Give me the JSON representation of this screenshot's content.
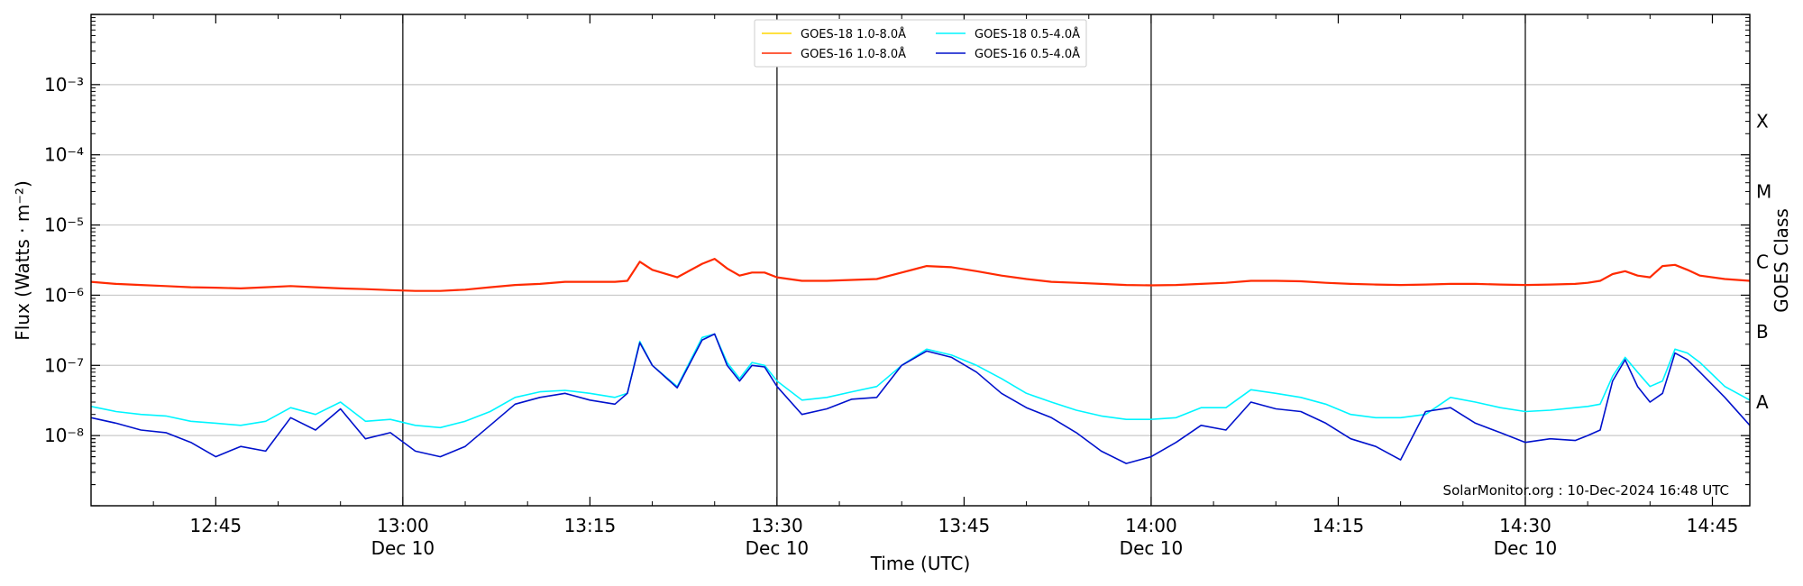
{
  "chart_data": {
    "type": "line",
    "ylabel": "Flux (Watts · m⁻²)",
    "xlabel": "Time (UTC)",
    "right_axis_label": "GOES Class",
    "credit": "SolarMonitor.org : 10-Dec-2024 16:48 UTC",
    "x_range": [
      "12:35",
      "14:48"
    ],
    "y_range": [
      1e-09,
      0.01
    ],
    "y_scale": "log",
    "grid": "horizontal at decades",
    "legend_position": "top-center",
    "x_ticks": [
      {
        "time": "12:45",
        "label": "12:45",
        "date": ""
      },
      {
        "time": "13:00",
        "label": "13:00",
        "date": "Dec 10"
      },
      {
        "time": "13:15",
        "label": "13:15",
        "date": ""
      },
      {
        "time": "13:30",
        "label": "13:30",
        "date": "Dec 10"
      },
      {
        "time": "13:45",
        "label": "13:45",
        "date": ""
      },
      {
        "time": "14:00",
        "label": "14:00",
        "date": "Dec 10"
      },
      {
        "time": "14:15",
        "label": "14:15",
        "date": ""
      },
      {
        "time": "14:30",
        "label": "14:30",
        "date": "Dec 10"
      },
      {
        "time": "14:45",
        "label": "14:45",
        "date": ""
      }
    ],
    "y_ticks": [
      {
        "exp": -8,
        "label": "10⁻⁸"
      },
      {
        "exp": -7,
        "label": "10⁻⁷"
      },
      {
        "exp": -6,
        "label": "10⁻⁶"
      },
      {
        "exp": -5,
        "label": "10⁻⁵"
      },
      {
        "exp": -4,
        "label": "10⁻⁴"
      },
      {
        "exp": -3,
        "label": "10⁻³"
      }
    ],
    "day_lines": [
      "13:00",
      "13:30",
      "14:00",
      "14:30"
    ],
    "goes_classes": [
      {
        "label": "A",
        "flux": 3e-08
      },
      {
        "label": "B",
        "flux": 3e-07
      },
      {
        "label": "C",
        "flux": 3e-06
      },
      {
        "label": "M",
        "flux": 3e-05
      },
      {
        "label": "X",
        "flux": 0.0003
      }
    ],
    "x": [
      "12:35",
      "12:37",
      "12:39",
      "12:41",
      "12:43",
      "12:45",
      "12:47",
      "12:49",
      "12:51",
      "12:53",
      "12:55",
      "12:57",
      "12:59",
      "13:01",
      "13:03",
      "13:05",
      "13:07",
      "13:09",
      "13:11",
      "13:13",
      "13:15",
      "13:17",
      "13:18",
      "13:19",
      "13:20",
      "13:22",
      "13:24",
      "13:25",
      "13:26",
      "13:27",
      "13:28",
      "13:29",
      "13:30",
      "13:32",
      "13:34",
      "13:36",
      "13:38",
      "13:40",
      "13:42",
      "13:44",
      "13:46",
      "13:48",
      "13:50",
      "13:52",
      "13:54",
      "13:56",
      "13:58",
      "14:00",
      "14:02",
      "14:04",
      "14:06",
      "14:08",
      "14:10",
      "14:12",
      "14:14",
      "14:16",
      "14:18",
      "14:20",
      "14:22",
      "14:24",
      "14:26",
      "14:28",
      "14:30",
      "14:32",
      "14:34",
      "14:35",
      "14:36",
      "14:37",
      "14:38",
      "14:39",
      "14:40",
      "14:41",
      "14:42",
      "14:43",
      "14:44",
      "14:46",
      "14:48"
    ],
    "series": [
      {
        "name": "GOES-18 1.0-8.0Å",
        "color": "#ffd700",
        "width": 1.2,
        "values": [
          1.55e-06,
          1.45e-06,
          1.4e-06,
          1.35e-06,
          1.3e-06,
          1.28e-06,
          1.25e-06,
          1.3e-06,
          1.35e-06,
          1.3e-06,
          1.25e-06,
          1.22e-06,
          1.18e-06,
          1.15e-06,
          1.15e-06,
          1.2e-06,
          1.3e-06,
          1.4e-06,
          1.45e-06,
          1.55e-06,
          1.55e-06,
          1.55e-06,
          1.6e-06,
          3e-06,
          2.3e-06,
          1.8e-06,
          2.8e-06,
          3.3e-06,
          2.4e-06,
          1.9e-06,
          2.1e-06,
          2.1e-06,
          1.8e-06,
          1.6e-06,
          1.6e-06,
          1.65e-06,
          1.7e-06,
          2.1e-06,
          2.6e-06,
          2.5e-06,
          2.2e-06,
          1.9e-06,
          1.7e-06,
          1.55e-06,
          1.5e-06,
          1.45e-06,
          1.4e-06,
          1.38e-06,
          1.4e-06,
          1.45e-06,
          1.5e-06,
          1.6e-06,
          1.6e-06,
          1.58e-06,
          1.5e-06,
          1.45e-06,
          1.42e-06,
          1.4e-06,
          1.42e-06,
          1.45e-06,
          1.45e-06,
          1.42e-06,
          1.4e-06,
          1.42e-06,
          1.45e-06,
          1.5e-06,
          1.6e-06,
          2e-06,
          2.2e-06,
          1.9e-06,
          1.8e-06,
          2.6e-06,
          2.7e-06,
          2.3e-06,
          1.9e-06,
          1.7e-06,
          1.6e-06
        ]
      },
      {
        "name": "GOES-16 1.0-8.0Å",
        "color": "#ff2a00",
        "width": 2.2,
        "values": [
          1.55e-06,
          1.45e-06,
          1.4e-06,
          1.35e-06,
          1.3e-06,
          1.28e-06,
          1.25e-06,
          1.3e-06,
          1.35e-06,
          1.3e-06,
          1.25e-06,
          1.22e-06,
          1.18e-06,
          1.15e-06,
          1.15e-06,
          1.2e-06,
          1.3e-06,
          1.4e-06,
          1.45e-06,
          1.55e-06,
          1.55e-06,
          1.55e-06,
          1.6e-06,
          3e-06,
          2.3e-06,
          1.8e-06,
          2.8e-06,
          3.3e-06,
          2.4e-06,
          1.9e-06,
          2.1e-06,
          2.1e-06,
          1.8e-06,
          1.6e-06,
          1.6e-06,
          1.65e-06,
          1.7e-06,
          2.1e-06,
          2.6e-06,
          2.5e-06,
          2.2e-06,
          1.9e-06,
          1.7e-06,
          1.55e-06,
          1.5e-06,
          1.45e-06,
          1.4e-06,
          1.38e-06,
          1.4e-06,
          1.45e-06,
          1.5e-06,
          1.6e-06,
          1.6e-06,
          1.58e-06,
          1.5e-06,
          1.45e-06,
          1.42e-06,
          1.4e-06,
          1.42e-06,
          1.45e-06,
          1.45e-06,
          1.42e-06,
          1.4e-06,
          1.42e-06,
          1.45e-06,
          1.5e-06,
          1.6e-06,
          2e-06,
          2.2e-06,
          1.9e-06,
          1.8e-06,
          2.6e-06,
          2.7e-06,
          2.3e-06,
          1.9e-06,
          1.7e-06,
          1.6e-06
        ]
      },
      {
        "name": "GOES-18 0.5-4.0Å",
        "color": "#00f5ff",
        "width": 1.6,
        "values": [
          2.6e-08,
          2.2e-08,
          2e-08,
          1.9e-08,
          1.6e-08,
          1.5e-08,
          1.4e-08,
          1.6e-08,
          2.5e-08,
          2e-08,
          3e-08,
          1.6e-08,
          1.7e-08,
          1.4e-08,
          1.3e-08,
          1.6e-08,
          2.2e-08,
          3.5e-08,
          4.2e-08,
          4.4e-08,
          4e-08,
          3.5e-08,
          4e-08,
          2.2e-07,
          1e-07,
          5e-08,
          2.5e-07,
          2.8e-07,
          1.1e-07,
          6.5e-08,
          1.1e-07,
          1e-07,
          6e-08,
          3.2e-08,
          3.5e-08,
          4.2e-08,
          5e-08,
          1e-07,
          1.7e-07,
          1.4e-07,
          1e-07,
          6.5e-08,
          4e-08,
          3e-08,
          2.3e-08,
          1.9e-08,
          1.7e-08,
          1.7e-08,
          1.8e-08,
          2.5e-08,
          2.5e-08,
          4.5e-08,
          4e-08,
          3.5e-08,
          2.8e-08,
          2e-08,
          1.8e-08,
          1.8e-08,
          2e-08,
          3.5e-08,
          3e-08,
          2.5e-08,
          2.2e-08,
          2.3e-08,
          2.5e-08,
          2.6e-08,
          2.8e-08,
          7e-08,
          1.3e-07,
          8e-08,
          5e-08,
          6e-08,
          1.7e-07,
          1.5e-07,
          1.1e-07,
          5e-08,
          3.2e-08
        ]
      },
      {
        "name": "GOES-16 0.5-4.0Å",
        "color": "#0011cc",
        "width": 1.6,
        "values": [
          1.8e-08,
          1.5e-08,
          1.2e-08,
          1.1e-08,
          8e-09,
          5e-09,
          7e-09,
          6e-09,
          1.8e-08,
          1.2e-08,
          2.4e-08,
          9e-09,
          1.1e-08,
          6e-09,
          5e-09,
          7e-09,
          1.4e-08,
          2.8e-08,
          3.5e-08,
          4e-08,
          3.2e-08,
          2.8e-08,
          4e-08,
          2.1e-07,
          1e-07,
          4.8e-08,
          2.3e-07,
          2.8e-07,
          1e-07,
          6e-08,
          1e-07,
          9.5e-08,
          5e-08,
          2e-08,
          2.4e-08,
          3.3e-08,
          3.5e-08,
          1e-07,
          1.6e-07,
          1.3e-07,
          8e-08,
          4e-08,
          2.5e-08,
          1.8e-08,
          1.1e-08,
          6e-09,
          4e-09,
          5e-09,
          8e-09,
          1.4e-08,
          1.2e-08,
          3e-08,
          2.4e-08,
          2.2e-08,
          1.5e-08,
          9e-09,
          7e-09,
          4.5e-09,
          2.2e-08,
          2.5e-08,
          1.5e-08,
          1.1e-08,
          8e-09,
          9e-09,
          8.5e-09,
          1e-08,
          1.2e-08,
          6e-08,
          1.2e-07,
          5e-08,
          3e-08,
          4e-08,
          1.5e-07,
          1.2e-07,
          8e-08,
          3.5e-08,
          1.4e-08
        ]
      }
    ]
  }
}
